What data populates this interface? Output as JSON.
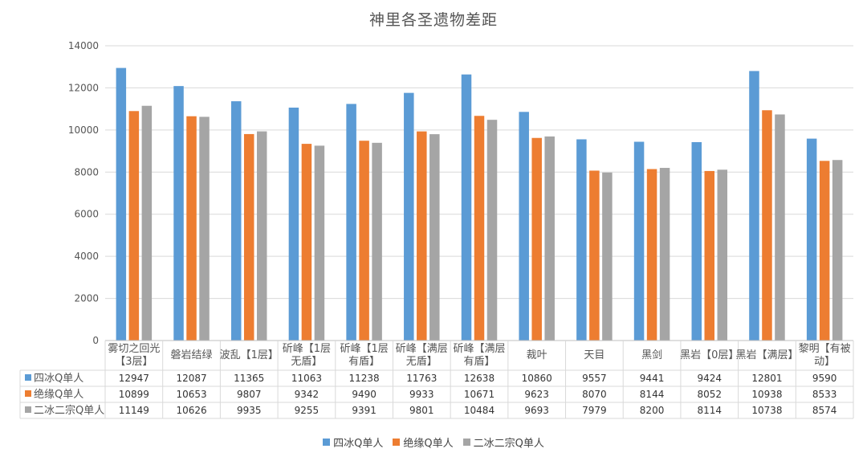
{
  "chart_data": {
    "type": "bar",
    "title": "神里各圣遗物差距",
    "categories": [
      "雾切之回光【3层】",
      "磐岩结绿",
      "波乱【1层】",
      "斫峰【1层无盾】",
      "斫峰【1层有盾】",
      "斫峰【满层无盾】",
      "斫峰【满层有盾】",
      "裁叶",
      "天目",
      "黑剑",
      "黑岩【0层】",
      "黑岩【满层】",
      "黎明【有被动】"
    ],
    "category_lines": [
      [
        "雾切之回光",
        "【3层】"
      ],
      [
        "磐岩结绿"
      ],
      [
        "波乱【1层】"
      ],
      [
        "斫峰【1层",
        "无盾】"
      ],
      [
        "斫峰【1层",
        "有盾】"
      ],
      [
        "斫峰【满层",
        "无盾】"
      ],
      [
        "斫峰【满层",
        "有盾】"
      ],
      [
        "裁叶"
      ],
      [
        "天目"
      ],
      [
        "黑剑"
      ],
      [
        "黑岩【0层】"
      ],
      [
        "黑岩【满层】"
      ],
      [
        "黎明【有被",
        "动】"
      ]
    ],
    "series": [
      {
        "name": "四冰Q单人",
        "color": "#5b9bd5",
        "values": [
          12947,
          12087,
          11365,
          11063,
          11238,
          11763,
          12638,
          10860,
          9557,
          9441,
          9424,
          12801,
          9590
        ]
      },
      {
        "name": "绝缘Q单人",
        "color": "#ed7d31",
        "values": [
          10899,
          10653,
          9807,
          9342,
          9490,
          9933,
          10671,
          9623,
          8070,
          8144,
          8052,
          10938,
          8533
        ]
      },
      {
        "name": "二冰二宗Q单人",
        "color": "#a5a5a5",
        "values": [
          11149,
          10626,
          9935,
          9255,
          9391,
          9801,
          10484,
          9693,
          7979,
          8200,
          8114,
          10738,
          8574
        ]
      }
    ],
    "ylim": [
      0,
      14000
    ],
    "yticks": [
      0,
      2000,
      4000,
      6000,
      8000,
      10000,
      12000,
      14000
    ],
    "grid": true,
    "legend_position": "bottom",
    "data_table": true
  }
}
